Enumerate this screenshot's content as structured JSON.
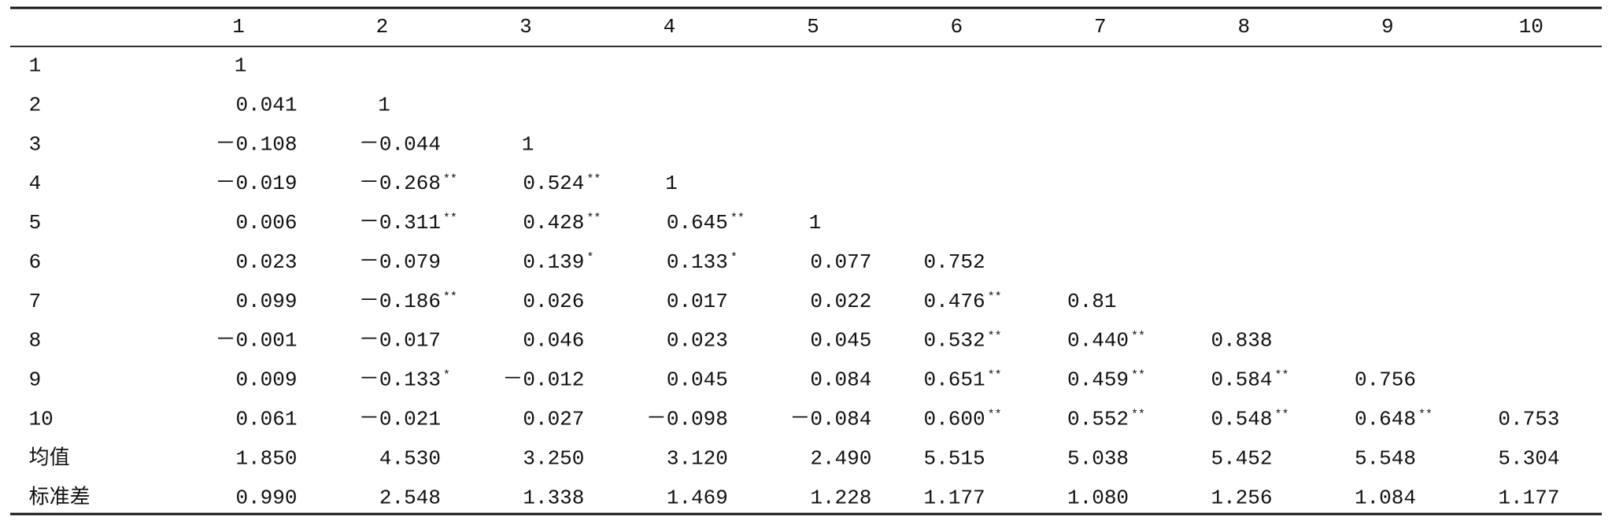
{
  "table": {
    "header": [
      "1",
      "2",
      "3",
      "4",
      "5",
      "6",
      "7",
      "8",
      "9",
      "10"
    ],
    "rows": [
      {
        "label": "1",
        "cells": [
          "1"
        ]
      },
      {
        "label": "2",
        "cells": [
          "0.041",
          "1"
        ]
      },
      {
        "label": "3",
        "cells": [
          "－0.108",
          "－0.044",
          "1"
        ]
      },
      {
        "label": "4",
        "cells": [
          "－0.019",
          {
            "value": "－0.268",
            "sig": "**"
          },
          {
            "value": "0.524",
            "sig": "**"
          },
          "1"
        ]
      },
      {
        "label": "5",
        "cells": [
          "0.006",
          {
            "value": "－0.311",
            "sig": "**"
          },
          {
            "value": "0.428",
            "sig": "**"
          },
          {
            "value": "0.645",
            "sig": "**"
          },
          "1"
        ]
      },
      {
        "label": "6",
        "cells": [
          "0.023",
          "－0.079",
          {
            "value": "0.139",
            "sig": "*"
          },
          {
            "value": "0.133",
            "sig": "*"
          },
          "0.077",
          "0.752"
        ]
      },
      {
        "label": "7",
        "cells": [
          "0.099",
          {
            "value": "－0.186",
            "sig": "**"
          },
          "0.026",
          "0.017",
          "0.022",
          {
            "value": "0.476",
            "sig": "**"
          },
          "0.81"
        ]
      },
      {
        "label": "8",
        "cells": [
          "－0.001",
          "－0.017",
          "0.046",
          "0.023",
          "0.045",
          {
            "value": "0.532",
            "sig": "**"
          },
          {
            "value": "0.440",
            "sig": "**"
          },
          "0.838"
        ]
      },
      {
        "label": "9",
        "cells": [
          "0.009",
          {
            "value": "－0.133",
            "sig": "*"
          },
          "－0.012",
          "0.045",
          "0.084",
          {
            "value": "0.651",
            "sig": "**"
          },
          {
            "value": "0.459",
            "sig": "**"
          },
          {
            "value": "0.584",
            "sig": "**"
          },
          "0.756"
        ]
      },
      {
        "label": "10",
        "cells": [
          "0.061",
          "－0.021",
          "0.027",
          "－0.098",
          "－0.084",
          {
            "value": "0.600",
            "sig": "**"
          },
          {
            "value": "0.552",
            "sig": "**"
          },
          {
            "value": "0.548",
            "sig": "**"
          },
          {
            "value": "0.648",
            "sig": "**"
          },
          "0.753"
        ]
      },
      {
        "label": "均值",
        "cells": [
          "1.850",
          "4.530",
          "3.250",
          "3.120",
          "2.490",
          "5.515",
          "5.038",
          "5.452",
          "5.548",
          "5.304"
        ]
      },
      {
        "label": "标准差",
        "cells": [
          "0.990",
          "2.548",
          "1.338",
          "1.469",
          "1.228",
          "1.177",
          "1.080",
          "1.256",
          "1.084",
          "1.177"
        ]
      }
    ]
  }
}
